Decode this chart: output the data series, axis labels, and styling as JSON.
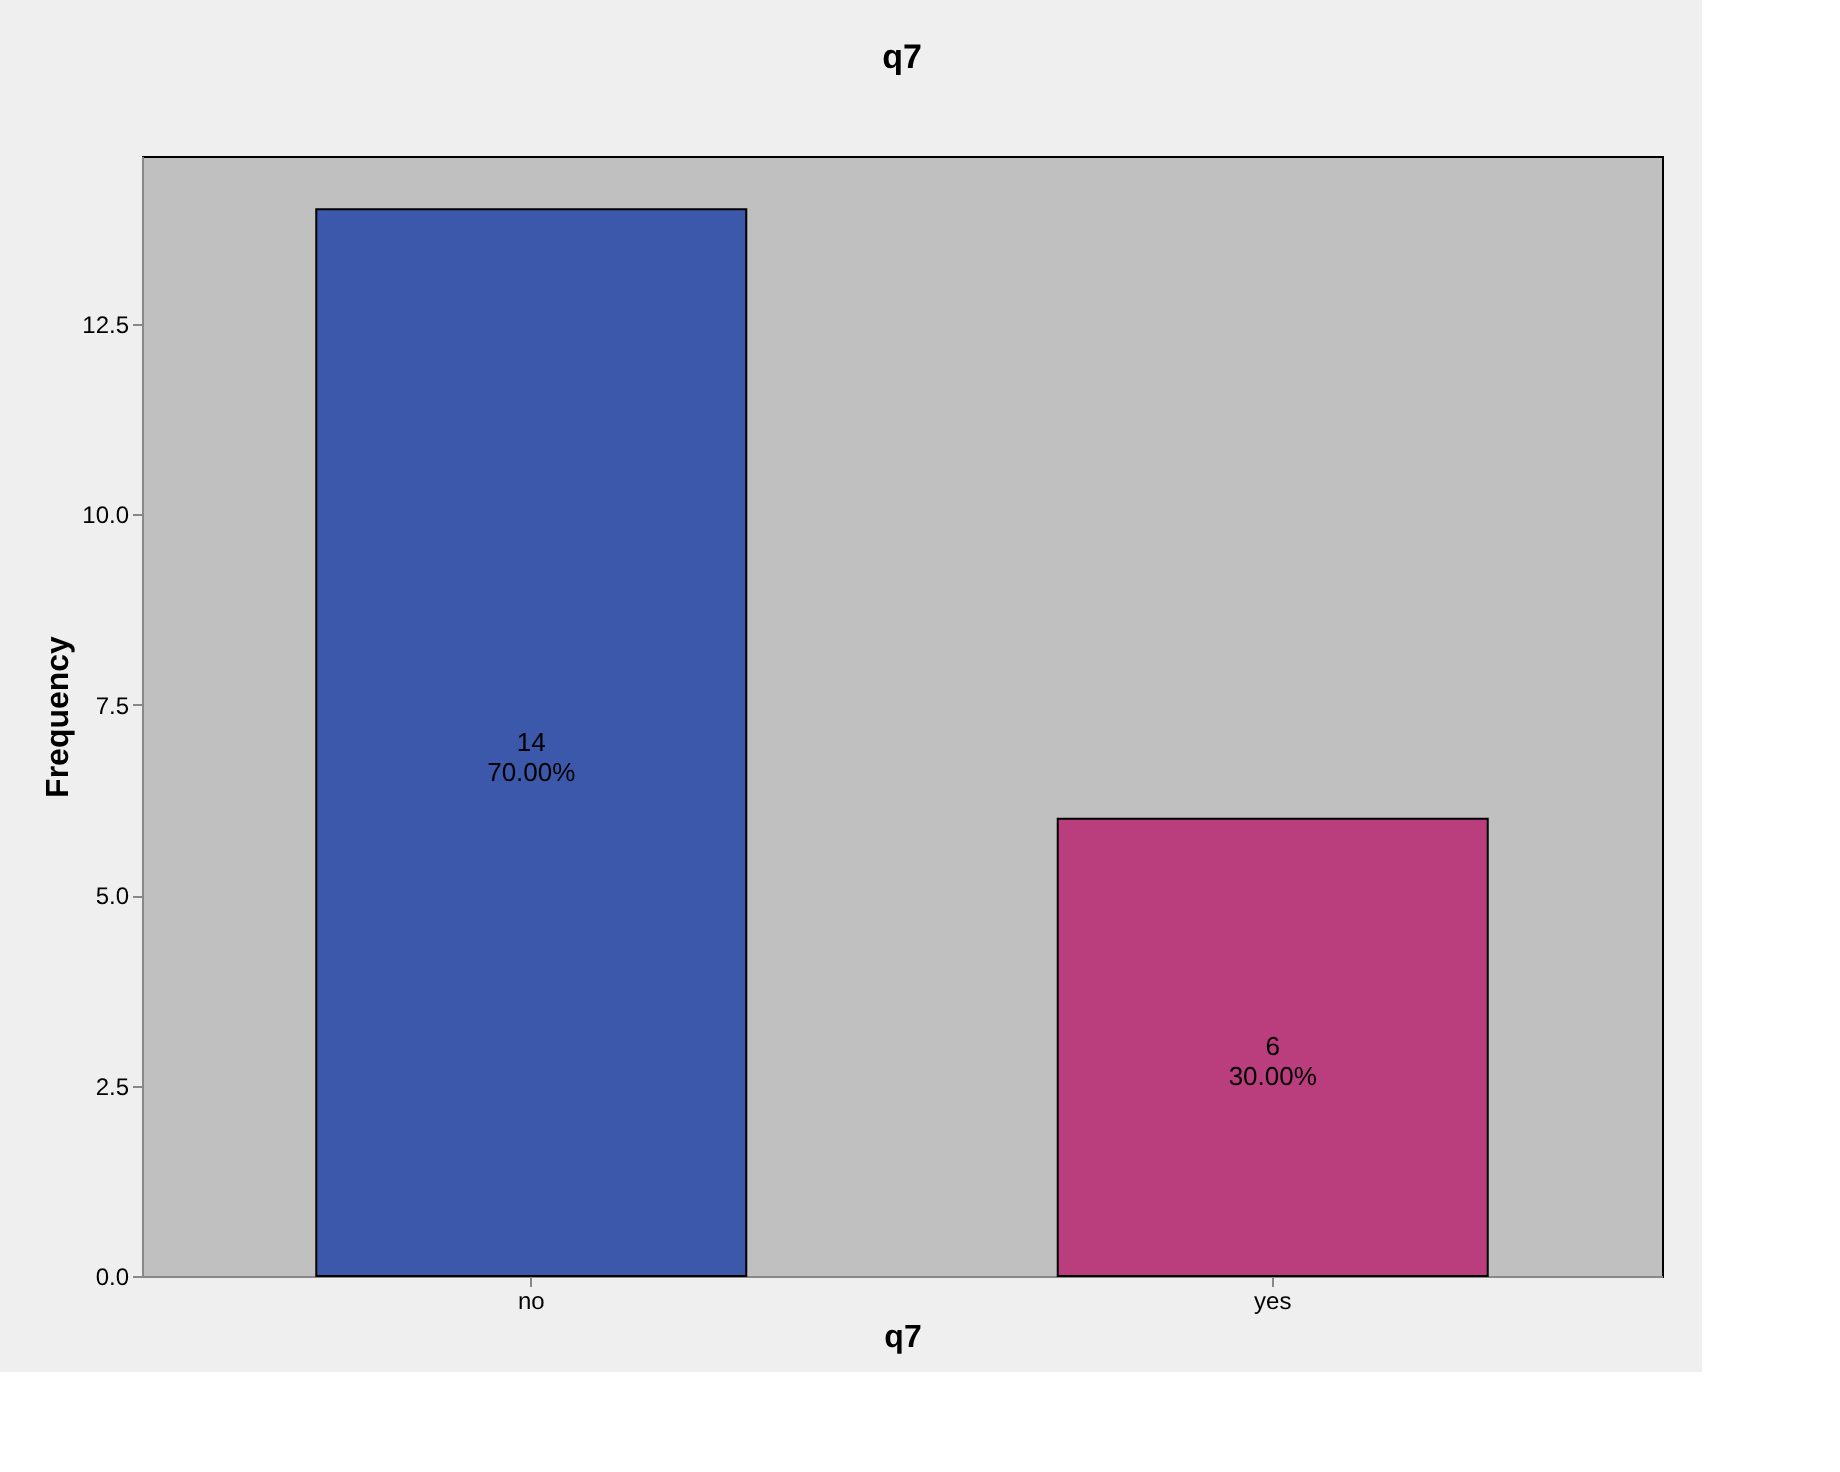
{
  "chart_data": {
    "type": "bar",
    "title": "q7",
    "xlabel": "q7",
    "ylabel": "Frequency",
    "categories": [
      "no",
      "yes"
    ],
    "values": [
      14,
      6
    ],
    "colors": [
      "#3c58aa",
      "#ba3d7d"
    ],
    "value_labels": [
      "14\n70.00%",
      "6\n30.00%"
    ],
    "ylim": [
      0,
      14.7
    ],
    "yticks": [
      {
        "value": 0,
        "label": "0.0"
      },
      2.5,
      {
        "value": 5,
        "label": "5.0"
      },
      7.5,
      {
        "value": 10,
        "label": "10.0"
      },
      12.5
    ],
    "grid": false
  }
}
